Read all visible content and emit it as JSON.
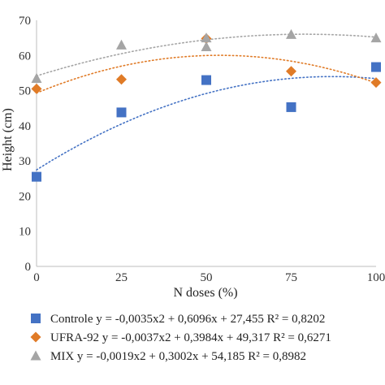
{
  "chart_data": {
    "type": "scatter",
    "xlabel": "N doses (%)",
    "ylabel": "Height (cm)",
    "x": [
      0,
      25,
      50,
      75,
      100
    ],
    "xticks": [
      "0",
      "25",
      "50",
      "75",
      "100"
    ],
    "yticks": [
      "0",
      "10",
      "20",
      "30",
      "40",
      "50",
      "60",
      "70"
    ],
    "xlim": [
      0,
      100
    ],
    "ylim": [
      0,
      70
    ],
    "grid": false,
    "legend_position": "bottom",
    "series": [
      {
        "name": "Controle",
        "marker": "square",
        "color": "#4472C4",
        "values": [
          25.5,
          43.8,
          53.0,
          45.3,
          56.7
        ],
        "trendline": [
          -0.0035,
          0.6096,
          27.455
        ],
        "legend_label": "Controle y = -0,0035x2 + 0,6096x + 27,455 R² = 0,8202"
      },
      {
        "name": "UFRA-92",
        "marker": "diamond",
        "color": "#E07B27",
        "values": [
          50.5,
          53.2,
          64.8,
          55.5,
          52.3
        ],
        "trendline": [
          -0.0037,
          0.3984,
          49.317
        ],
        "legend_label": "UFRA-92 y = -0,0037x2 + 0,3984x + 49,317 R² = 0,6271"
      },
      {
        "name": "MIX",
        "marker": "triangle",
        "color": "#A5A5A5",
        "values": [
          53.5,
          63.0,
          62.5,
          66.0,
          65.0
        ],
        "extra_points": [
          [
            50,
            65.0
          ]
        ],
        "trendline": [
          -0.0019,
          0.3002,
          54.185
        ],
        "legend_label": "MIX y = -0,0019x2 + 0,3002x + 54,185 R² = 0,8982"
      }
    ]
  }
}
